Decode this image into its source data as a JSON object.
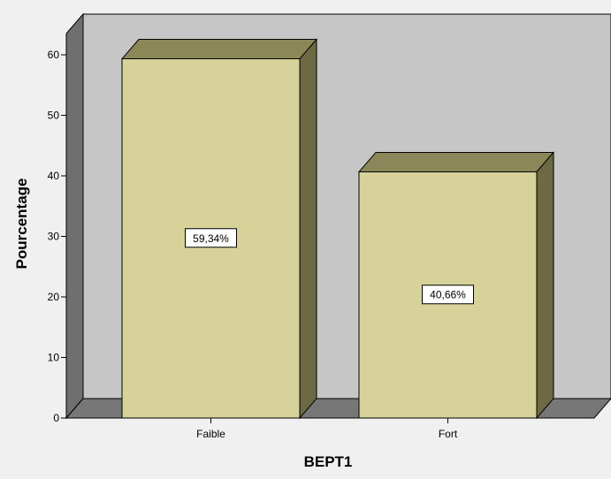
{
  "colors": {
    "background": "#f0f0f0",
    "back_wall": "#c6c6c6",
    "side_wall": "#6f6f6f",
    "floor": "#777777",
    "bar_front": "#d6d299",
    "bar_top": "#8c8759",
    "bar_side": "#6d6945",
    "outline": "#000000"
  },
  "chart_data": {
    "type": "bar",
    "style": "3d",
    "title": "",
    "xlabel": "BEPT1",
    "ylabel": "Pourcentage",
    "categories": [
      "Faible",
      "Fort"
    ],
    "values": [
      59.34,
      40.66
    ],
    "data_labels": [
      "59,34%",
      "40,66%"
    ],
    "yticks": [
      0,
      10,
      20,
      30,
      40,
      50,
      60
    ],
    "ylim": [
      0,
      60
    ],
    "grid": false,
    "legend": "none"
  }
}
